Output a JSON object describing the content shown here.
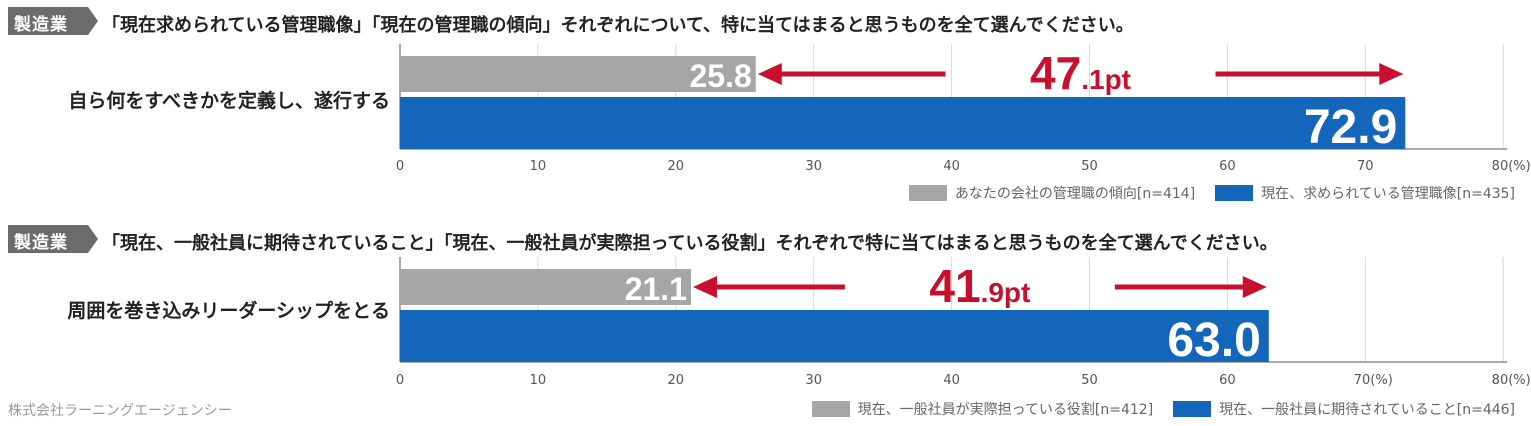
{
  "colors": {
    "gray": "#a6a6a6",
    "blue": "#1366b9",
    "red": "#c8102e",
    "tag": "#6b6b6b",
    "grid": "#d9d9d9",
    "axis": "#555555"
  },
  "panels": [
    {
      "tag": "製造業",
      "question": "「現在求められている管理職像」「現在の管理職の傾向」それぞれについて、特に当てはまると思うものを全て選んでください。",
      "ylabel": "自ら何をすべきかを定義し、遂行する",
      "diff_main": "47",
      "diff_frac": ".1pt",
      "tick_labels": [
        "0",
        "10",
        "20",
        "30",
        "40",
        "50",
        "60",
        "70",
        "80(%)"
      ],
      "legend": [
        {
          "label": "あなたの会社の管理職の傾向[n=414]",
          "color": "gray"
        },
        {
          "label": "現在、求められている管理職像[n=435]",
          "color": "blue"
        }
      ]
    },
    {
      "tag": "製造業",
      "question": "「現在、一般社員に期待されていること」「現在、一般社員が実際担っている役割」それぞれで特に当てはまると思うものを全て選んでください。",
      "ylabel": "周囲を巻き込みリーダーシップをとる",
      "diff_main": "41",
      "diff_frac": ".9pt",
      "tick_labels": [
        "0",
        "10",
        "20",
        "30",
        "40",
        "50",
        "60",
        "70(%)",
        "80(%)"
      ],
      "legend": [
        {
          "label": "現在、一般社員が実際担っている役割[n=412]",
          "color": "gray"
        },
        {
          "label": "現在、一般社員に期待されていること[n=446]",
          "color": "blue"
        }
      ]
    }
  ],
  "footer": "株式会社ラーニングエージェンシー",
  "chart_data": [
    {
      "type": "bar",
      "categories": [
        "自ら何をすべきかを定義し、遂行する"
      ],
      "series": [
        {
          "name": "あなたの会社の管理職の傾向[n=414]",
          "values": [
            25.8
          ],
          "label": "25.8"
        },
        {
          "name": "現在、求められている管理職像[n=435]",
          "values": [
            72.9
          ],
          "label": "72.9"
        }
      ],
      "xlim": [
        0,
        80
      ],
      "ticks": [
        0,
        10,
        20,
        30,
        40,
        50,
        60,
        70,
        80
      ],
      "annotation": "47.1pt"
    },
    {
      "type": "bar",
      "categories": [
        "周囲を巻き込みリーダーシップをとる"
      ],
      "series": [
        {
          "name": "現在、一般社員が実際担っている役割[n=412]",
          "values": [
            21.1
          ],
          "label": "21.1"
        },
        {
          "name": "現在、一般社員に期待されていること[n=446]",
          "values": [
            63.0
          ],
          "label": "63.0"
        }
      ],
      "xlim": [
        0,
        80
      ],
      "ticks": [
        0,
        10,
        20,
        30,
        40,
        50,
        60,
        70,
        80
      ],
      "annotation": "41.9pt"
    }
  ]
}
